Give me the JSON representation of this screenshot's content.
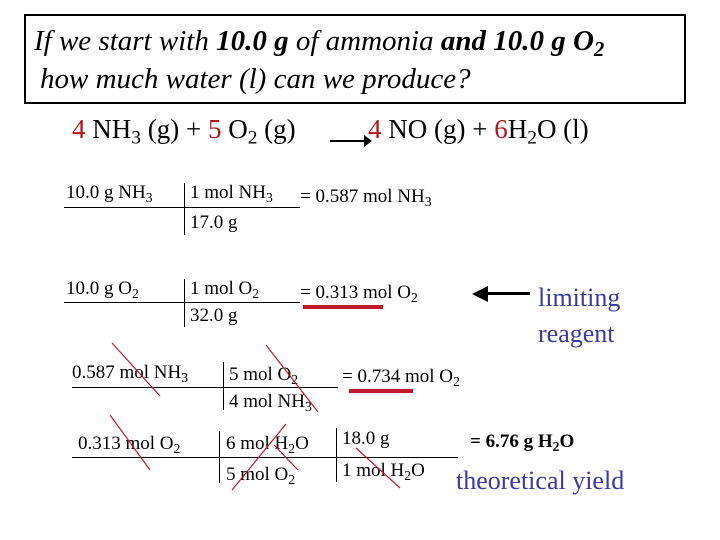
{
  "question": {
    "line1": {
      "a": "If we start with ",
      "b": "10.0 g",
      "c": " of ammonia ",
      "d": "and 10.0 g O",
      "e": "2"
    },
    "line2": "how much water (l) can we produce?"
  },
  "equation": {
    "c1": "4",
    "s1": "NH",
    "s1sub": "3",
    "s1phase": " (g)",
    "plus1": "+",
    "c2": "5",
    "s2": "O",
    "s2sub": "2",
    "s2phase": " (g)",
    "c3": "4",
    "s3": "NO (g)",
    "plus2": "+",
    "c4": "6",
    "s4": "H",
    "s4sub": "2",
    "s4rest": "O (l)"
  },
  "calc1": {
    "given": "10.0 g NH",
    "given_sub": "3",
    "num": "1 mol NH",
    "num_sub": "3",
    "den": "17.0 g",
    "result": "= 0.587 mol NH",
    "result_sub": "3"
  },
  "calc2": {
    "given": "10.0 g O",
    "given_sub": "2",
    "num": "1 mol O",
    "num_sub": "2",
    "den": "32.0 g",
    "result": "= 0.313 mol O",
    "result_sub": "2",
    "note_line1": "limiting",
    "note_line2": "reagent"
  },
  "calc3": {
    "given": "0.587 mol NH",
    "given_sub": "3",
    "num": "5 mol O",
    "num_sub": "2",
    "den": "4 mol NH",
    "den_sub": "3",
    "result": "= 0.734 mol O",
    "result_sub": "2"
  },
  "calc4": {
    "given": "0.313 mol O",
    "given_sub": "2",
    "num": "6 mol H",
    "num_sub": "2",
    "num_rest": "O",
    "den": "5 mol O",
    "den_sub": "2",
    "num2": "18.0 g",
    "den2": "1 mol H",
    "den2_sub": "2",
    "den2_rest": "O",
    "result": "= 6.76 g H",
    "result_sub": "2",
    "result_rest": "O",
    "note": "theoretical yield"
  },
  "colors": {
    "accent_red": "#c0192a",
    "coef_red": "#b5121b",
    "note_blue": "#3a3aa0"
  }
}
